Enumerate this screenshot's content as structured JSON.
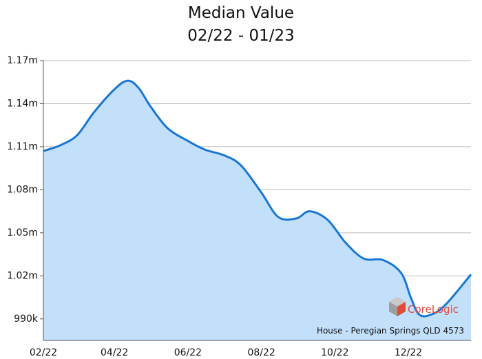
{
  "chart_data": {
    "type": "area",
    "title": "Median Value",
    "subtitle": "02/22 - 01/23",
    "xlabel": "",
    "ylabel": "",
    "x_tick_labels": [
      "02/22",
      "04/22",
      "06/22",
      "08/22",
      "10/22",
      "12/22"
    ],
    "y_tick_values": [
      990000,
      1020000,
      1050000,
      1080000,
      1110000,
      1140000,
      1170000
    ],
    "y_tick_labels": [
      "990k",
      "1.02m",
      "1.05m",
      "1.08m",
      "1.11m",
      "1.14m",
      "1.17m"
    ],
    "ylim": [
      975000,
      1170000
    ],
    "xlim": [
      "2022-02-01",
      "2023-01-22"
    ],
    "series": [
      {
        "x": [
          "2022-02-01",
          "2022-02-15",
          "2022-03-01",
          "2022-03-15",
          "2022-04-01",
          "2022-04-12",
          "2022-04-21",
          "2022-05-01",
          "2022-05-15",
          "2022-06-01",
          "2022-06-15",
          "2022-07-01",
          "2022-07-15",
          "2022-08-01",
          "2022-08-15",
          "2022-08-30",
          "2022-09-10",
          "2022-09-25",
          "2022-10-10",
          "2022-10-25",
          "2022-11-10",
          "2022-11-25",
          "2022-12-03",
          "2022-12-10",
          "2022-12-20",
          "2023-01-01",
          "2023-01-22"
        ],
        "y": [
          1107000,
          1111000,
          1118000,
          1134000,
          1150000,
          1156000,
          1151000,
          1138000,
          1123000,
          1114000,
          1108000,
          1104000,
          1097000,
          1078000,
          1061000,
          1060000,
          1065000,
          1059000,
          1043000,
          1032000,
          1031000,
          1022000,
          1005000,
          993000,
          993000,
          1000000,
          1021000
        ]
      }
    ],
    "colors": {
      "line": "#1976d2",
      "fill": "#c3e0fb",
      "grid": "#bbbbbb",
      "axis": "#555555"
    },
    "grid": true,
    "legend": "none",
    "annotation": "House - Peregian Springs QLD 4573",
    "logo_text": "CoreLogic"
  }
}
